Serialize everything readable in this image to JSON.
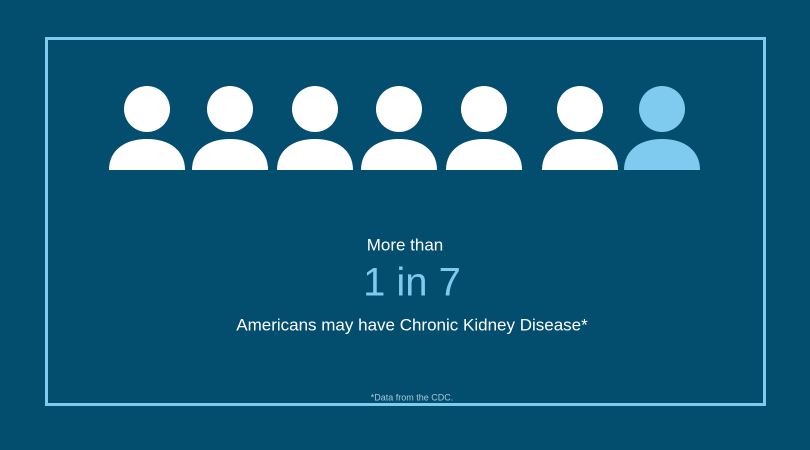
{
  "lead": "More than",
  "statistic": "1 in 7",
  "statement": "Americans may have Chronic Kidney Disease*",
  "footnote": "*Data from the CDC."
}
